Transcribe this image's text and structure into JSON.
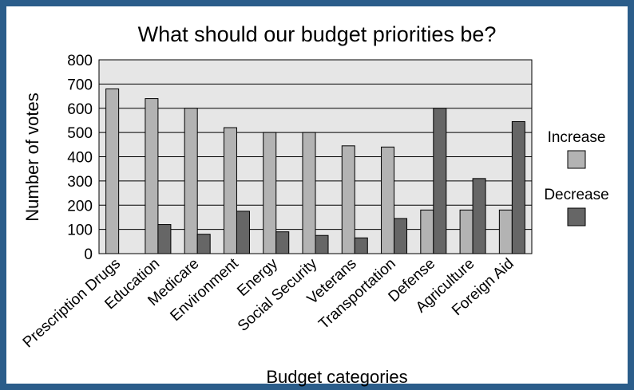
{
  "chart_data": {
    "type": "bar",
    "title": "What should our budget priorities be?",
    "xlabel": "Budget categories",
    "ylabel": "Number of votes",
    "ylim": [
      0,
      800
    ],
    "yticks": [
      0,
      100,
      200,
      300,
      400,
      500,
      600,
      700,
      800
    ],
    "grid": true,
    "legend_position": "right",
    "categories": [
      "Prescription Drugs",
      "Education",
      "Medicare",
      "Environment",
      "Energy",
      "Social Security",
      "Veterans",
      "Transportation",
      "Defense",
      "Agriculture",
      "Foreign Aid"
    ],
    "series": [
      {
        "name": "Increase",
        "color": "#b3b3b3",
        "values": [
          680,
          640,
          600,
          520,
          500,
          500,
          445,
          440,
          180,
          180,
          180
        ]
      },
      {
        "name": "Decrease",
        "color": "#666666",
        "values": [
          0,
          120,
          80,
          175,
          90,
          75,
          65,
          145,
          600,
          310,
          545
        ]
      }
    ]
  }
}
